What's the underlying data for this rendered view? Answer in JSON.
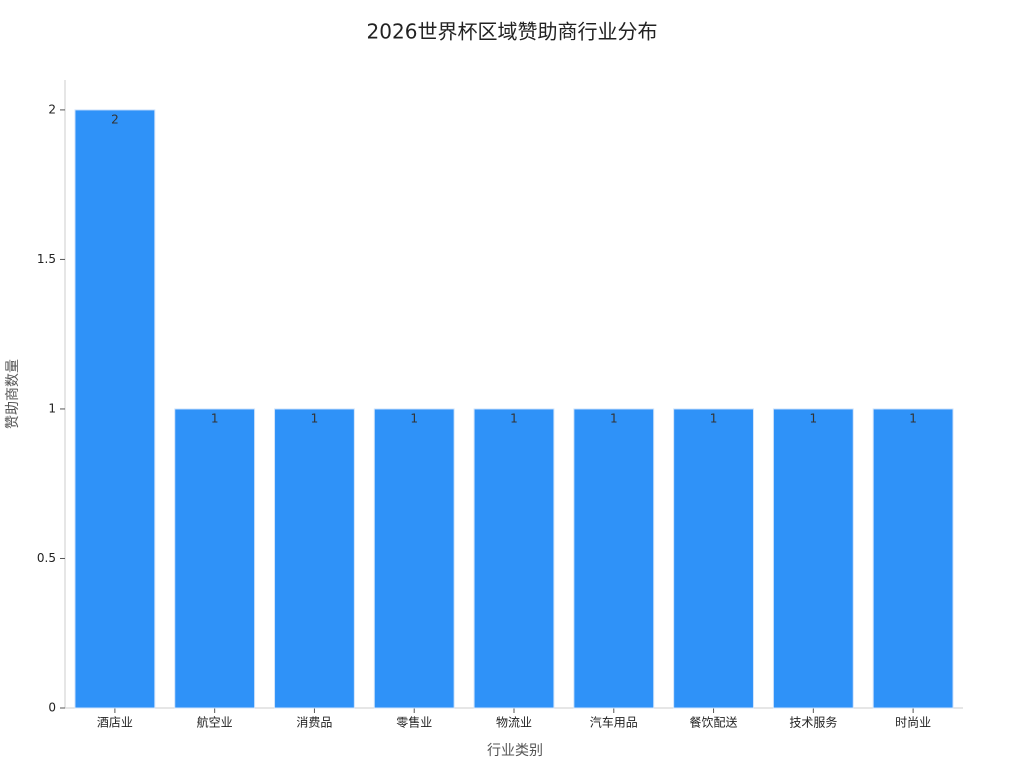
{
  "chart_data": {
    "type": "bar",
    "title": "2026世界杯区域赞助商行业分布",
    "x_label": "行业类别",
    "y_label": "赞助商数量",
    "categories": [
      "酒店业",
      "航空业",
      "消费品",
      "零售业",
      "物流业",
      "汽车用品",
      "餐饮配送",
      "技术服务",
      "时尚业"
    ],
    "values": [
      2,
      1,
      1,
      1,
      1,
      1,
      1,
      1,
      1
    ],
    "color": "#2f92f8",
    "ylim": [
      0,
      2.1
    ],
    "yticks": [
      0,
      0.5,
      1,
      1.5,
      2
    ],
    "grid": false
  }
}
